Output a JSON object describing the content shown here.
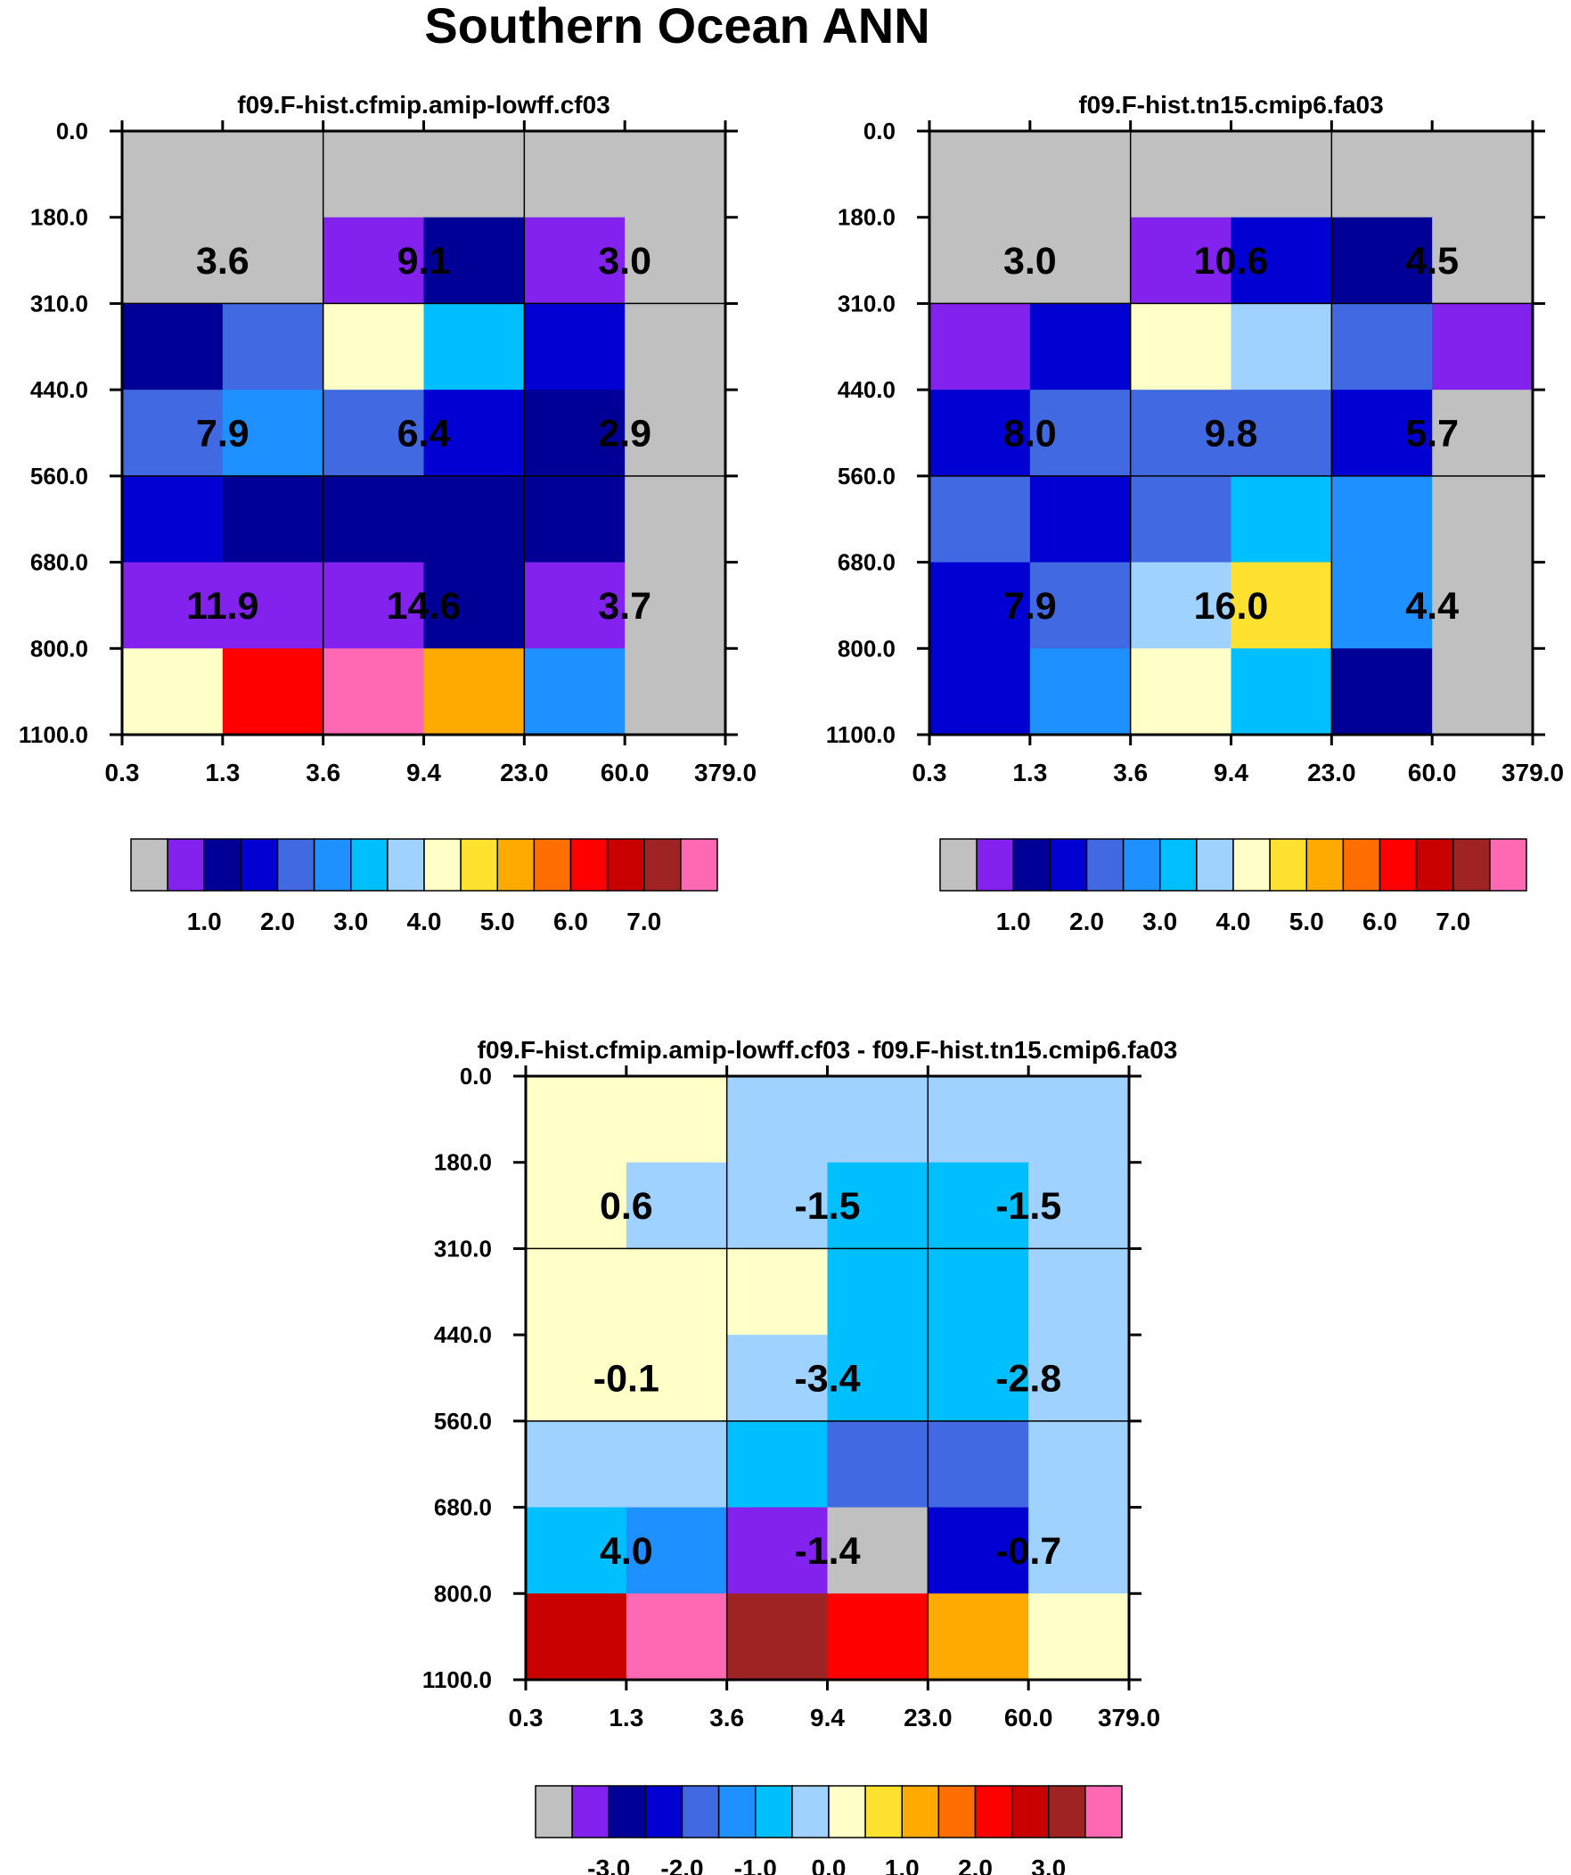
{
  "title": "Southern Ocean ANN",
  "palette": [
    "#c0c0c0",
    "#8322ee",
    "#000096",
    "#0000d2",
    "#4169e1",
    "#1e90ff",
    "#00bfff",
    "#a0d2ff",
    "#ffffc8",
    "#ffe130",
    "#ffaa00",
    "#ff6e00",
    "#ff0000",
    "#c80000",
    "#a02323",
    "#ff69b4"
  ],
  "chart_data": [
    {
      "type": "heatmap",
      "title": "f09.F-hist.cfmip.amip-lowff.cf03",
      "x_ticks": [
        "0.3",
        "1.3",
        "3.6",
        "9.4",
        "23.0",
        "60.0",
        "379.0"
      ],
      "y_ticks": [
        "0.0",
        "180.0",
        "310.0",
        "440.0",
        "560.0",
        "680.0",
        "800.0",
        "1100.0"
      ],
      "cells": [
        [
          0,
          0,
          0,
          0,
          0,
          0
        ],
        [
          0,
          0,
          1,
          2,
          1,
          0
        ],
        [
          2,
          4,
          8,
          6,
          3,
          0
        ],
        [
          4,
          5,
          4,
          3,
          2,
          0
        ],
        [
          3,
          2,
          2,
          2,
          2,
          0
        ],
        [
          1,
          1,
          1,
          2,
          1,
          0
        ],
        [
          8,
          12,
          15,
          10,
          5,
          0
        ]
      ],
      "annotations": [
        [
          "3.6",
          "9.1",
          "3.0"
        ],
        [
          "7.9",
          "6.4",
          "2.9"
        ],
        [
          "11.9",
          "14.6",
          "3.7"
        ]
      ],
      "colorbar_labels": [
        "1.0",
        "2.0",
        "3.0",
        "4.0",
        "5.0",
        "6.0",
        "7.0"
      ]
    },
    {
      "type": "heatmap",
      "title": "f09.F-hist.tn15.cmip6.fa03",
      "x_ticks": [
        "0.3",
        "1.3",
        "3.6",
        "9.4",
        "23.0",
        "60.0",
        "379.0"
      ],
      "y_ticks": [
        "0.0",
        "180.0",
        "310.0",
        "440.0",
        "560.0",
        "680.0",
        "800.0",
        "1100.0"
      ],
      "cells": [
        [
          0,
          0,
          0,
          0,
          0,
          0
        ],
        [
          0,
          0,
          1,
          3,
          2,
          0
        ],
        [
          1,
          3,
          8,
          7,
          4,
          1
        ],
        [
          3,
          4,
          4,
          4,
          3,
          0
        ],
        [
          4,
          3,
          4,
          6,
          5,
          0
        ],
        [
          3,
          4,
          7,
          9,
          5,
          0
        ],
        [
          3,
          5,
          8,
          6,
          2,
          0
        ]
      ],
      "annotations": [
        [
          "3.0",
          "10.6",
          "4.5"
        ],
        [
          "8.0",
          "9.8",
          "5.7"
        ],
        [
          "7.9",
          "16.0",
          "4.4"
        ]
      ],
      "colorbar_labels": [
        "1.0",
        "2.0",
        "3.0",
        "4.0",
        "5.0",
        "6.0",
        "7.0"
      ]
    },
    {
      "type": "heatmap",
      "title": "f09.F-hist.cfmip.amip-lowff.cf03 - f09.F-hist.tn15.cmip6.fa03",
      "x_ticks": [
        "0.3",
        "1.3",
        "3.6",
        "9.4",
        "23.0",
        "60.0",
        "379.0"
      ],
      "y_ticks": [
        "0.0",
        "180.0",
        "310.0",
        "440.0",
        "560.0",
        "680.0",
        "800.0",
        "1100.0"
      ],
      "cells": [
        [
          8,
          8,
          7,
          7,
          7,
          7
        ],
        [
          8,
          7,
          7,
          6,
          6,
          7
        ],
        [
          8,
          8,
          8,
          6,
          6,
          7
        ],
        [
          8,
          8,
          7,
          6,
          6,
          7
        ],
        [
          7,
          7,
          6,
          4,
          4,
          7
        ],
        [
          6,
          5,
          1,
          0,
          3,
          7
        ],
        [
          13,
          15,
          14,
          12,
          10,
          8
        ]
      ],
      "annotations": [
        [
          "0.6",
          "-1.5",
          "-1.5"
        ],
        [
          "-0.1",
          "-3.4",
          "-2.8"
        ],
        [
          "4.0",
          "-1.4",
          "-0.7"
        ]
      ],
      "colorbar_labels": [
        "-3.0",
        "-2.0",
        "-1.0",
        "0.0",
        "1.0",
        "2.0",
        "3.0"
      ]
    }
  ]
}
